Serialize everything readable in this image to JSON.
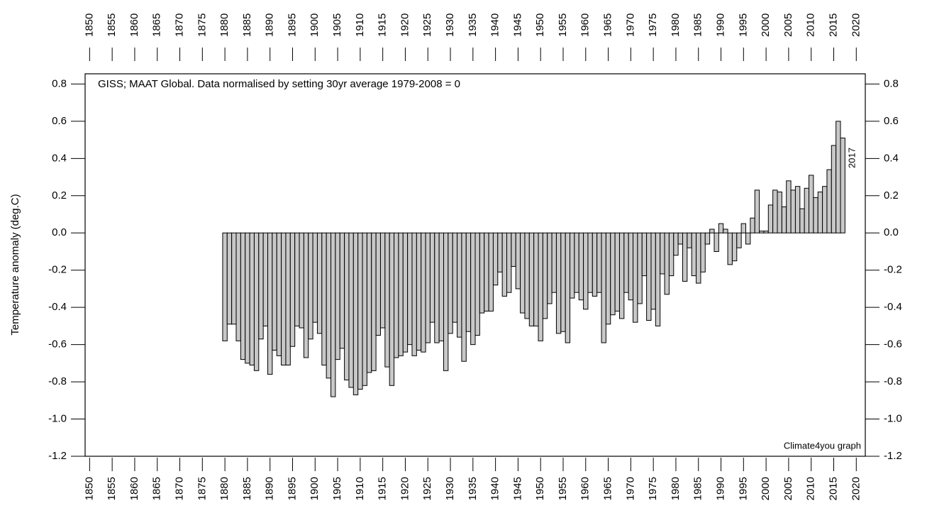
{
  "chart_data": {
    "type": "bar",
    "title": "GISS; MAAT Global. Data normalised by setting 30yr average 1979-2008 = 0",
    "ylabel": "Temperature anomaly (deg.C)",
    "annotations": [
      "Climate4you graph",
      "2017"
    ],
    "annotation_color": "#1a1aff",
    "color": "#c8c8c8",
    "x": [
      1880,
      1881,
      1882,
      1883,
      1884,
      1885,
      1886,
      1887,
      1888,
      1889,
      1890,
      1891,
      1892,
      1893,
      1894,
      1895,
      1896,
      1897,
      1898,
      1899,
      1900,
      1901,
      1902,
      1903,
      1904,
      1905,
      1906,
      1907,
      1908,
      1909,
      1910,
      1911,
      1912,
      1913,
      1914,
      1915,
      1916,
      1917,
      1918,
      1919,
      1920,
      1921,
      1922,
      1923,
      1924,
      1925,
      1926,
      1927,
      1928,
      1929,
      1930,
      1931,
      1932,
      1933,
      1934,
      1935,
      1936,
      1937,
      1938,
      1939,
      1940,
      1941,
      1942,
      1943,
      1944,
      1945,
      1946,
      1947,
      1948,
      1949,
      1950,
      1951,
      1952,
      1953,
      1954,
      1955,
      1956,
      1957,
      1958,
      1959,
      1960,
      1961,
      1962,
      1963,
      1964,
      1965,
      1966,
      1967,
      1968,
      1969,
      1970,
      1971,
      1972,
      1973,
      1974,
      1975,
      1976,
      1977,
      1978,
      1979,
      1980,
      1981,
      1982,
      1983,
      1984,
      1985,
      1986,
      1987,
      1988,
      1989,
      1990,
      1991,
      1992,
      1993,
      1994,
      1995,
      1996,
      1997,
      1998,
      1999,
      2000,
      2001,
      2002,
      2003,
      2004,
      2005,
      2006,
      2007,
      2008,
      2009,
      2010,
      2011,
      2012,
      2013,
      2014,
      2015,
      2016,
      2017
    ],
    "values": [
      -0.58,
      -0.49,
      -0.49,
      -0.58,
      -0.68,
      -0.7,
      -0.71,
      -0.74,
      -0.57,
      -0.5,
      -0.76,
      -0.63,
      -0.66,
      -0.71,
      -0.71,
      -0.61,
      -0.5,
      -0.51,
      -0.67,
      -0.57,
      -0.48,
      -0.54,
      -0.71,
      -0.78,
      -0.88,
      -0.68,
      -0.62,
      -0.79,
      -0.83,
      -0.87,
      -0.84,
      -0.82,
      -0.75,
      -0.74,
      -0.55,
      -0.51,
      -0.72,
      -0.82,
      -0.67,
      -0.66,
      -0.64,
      -0.6,
      -0.66,
      -0.63,
      -0.64,
      -0.59,
      -0.48,
      -0.59,
      -0.58,
      -0.74,
      -0.54,
      -0.48,
      -0.56,
      -0.69,
      -0.53,
      -0.6,
      -0.55,
      -0.43,
      -0.42,
      -0.42,
      -0.28,
      -0.21,
      -0.34,
      -0.32,
      -0.18,
      -0.3,
      -0.43,
      -0.46,
      -0.5,
      -0.5,
      -0.58,
      -0.46,
      -0.38,
      -0.32,
      -0.54,
      -0.53,
      -0.59,
      -0.35,
      -0.32,
      -0.36,
      -0.41,
      -0.32,
      -0.34,
      -0.32,
      -0.59,
      -0.49,
      -0.44,
      -0.42,
      -0.46,
      -0.32,
      -0.36,
      -0.48,
      -0.38,
      -0.23,
      -0.47,
      -0.41,
      -0.5,
      -0.22,
      -0.33,
      -0.23,
      -0.12,
      -0.06,
      -0.26,
      -0.08,
      -0.23,
      -0.27,
      -0.21,
      -0.06,
      0.02,
      -0.1,
      0.05,
      0.02,
      -0.17,
      -0.15,
      -0.08,
      0.05,
      -0.06,
      0.08,
      0.23,
      0.01,
      0.01,
      0.15,
      0.23,
      0.22,
      0.14,
      0.28,
      0.23,
      0.25,
      0.13,
      0.24,
      0.31,
      0.19,
      0.22,
      0.25,
      0.34,
      0.47,
      0.6,
      0.51
    ],
    "xlim": [
      1849,
      2022
    ],
    "xticks": [
      1850,
      1855,
      1860,
      1865,
      1870,
      1875,
      1880,
      1885,
      1890,
      1895,
      1900,
      1905,
      1910,
      1915,
      1920,
      1925,
      1930,
      1935,
      1940,
      1945,
      1950,
      1955,
      1960,
      1965,
      1970,
      1975,
      1980,
      1985,
      1990,
      1995,
      2000,
      2005,
      2010,
      2015,
      2020
    ],
    "ylim": [
      -1.2,
      0.855
    ],
    "yticks": [
      0.8,
      0.6,
      0.4,
      0.2,
      {
        "value": 0,
        "label": "0.0"
      },
      -0.2,
      -0.4,
      -0.6,
      -0.8,
      {
        "value": -1,
        "label": "-1.0"
      },
      -1.2
    ]
  }
}
